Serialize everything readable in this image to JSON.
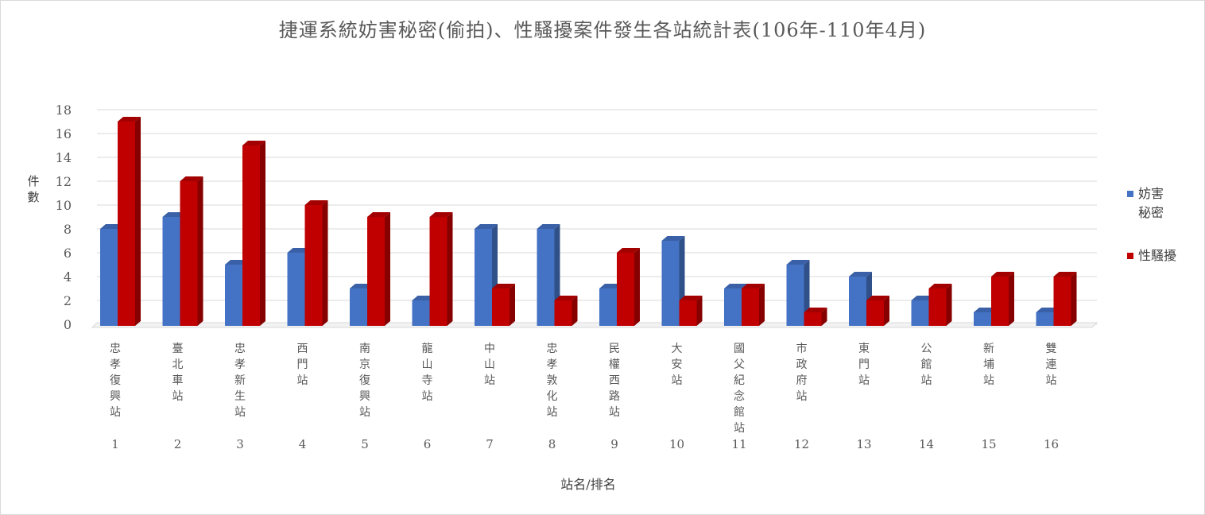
{
  "chart_data": {
    "type": "bar",
    "title": "捷運系統妨害秘密(偷拍)、性騷擾案件發生各站統計表(106年-110年4月)",
    "xlabel": "站名/排名",
    "ylabel": "件數",
    "ylim": [
      0,
      18
    ],
    "yticks": [
      0,
      2,
      4,
      6,
      8,
      10,
      12,
      14,
      16,
      18
    ],
    "grid": true,
    "legend_position": "right",
    "categories": [
      "忠孝復興站",
      "臺北車站",
      "忠孝新生站",
      "西門站",
      "南京復興站",
      "龍山寺站",
      "中山站",
      "忠孝敦化站",
      "民權西路站",
      "大安站",
      "國父紀念館站",
      "市政府站",
      "東門站",
      "公館站",
      "新埔站",
      "雙連站"
    ],
    "ranks": [
      "1",
      "2",
      "3",
      "4",
      "5",
      "6",
      "7",
      "8",
      "9",
      "10",
      "11",
      "12",
      "13",
      "14",
      "15",
      "16"
    ],
    "series": [
      {
        "name": "妨害秘密",
        "color": "#4472c4",
        "values": [
          8,
          9,
          5,
          6,
          3,
          2,
          8,
          8,
          3,
          7,
          3,
          5,
          4,
          2,
          1,
          1
        ]
      },
      {
        "name": "性騷擾",
        "color": "#c00000",
        "values": [
          17,
          12,
          15,
          10,
          9,
          9,
          3,
          2,
          6,
          2,
          3,
          1,
          2,
          3,
          4,
          4
        ]
      }
    ]
  }
}
